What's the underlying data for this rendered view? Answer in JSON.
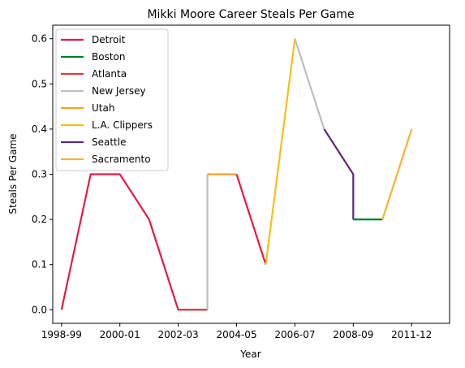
{
  "chart_data": {
    "type": "line",
    "title": "Mikki Moore Career Steals Per Game",
    "xlabel": "Year",
    "ylabel": "Steals Per Game",
    "ylim": [
      -0.03,
      0.63
    ],
    "xlim": [
      -0.3,
      13.3
    ],
    "yticks": [
      0.0,
      0.1,
      0.2,
      0.3,
      0.4,
      0.5,
      0.6
    ],
    "ytick_labels": [
      "0.0",
      "0.1",
      "0.2",
      "0.3",
      "0.4",
      "0.5",
      "0.6"
    ],
    "xticks": [
      0,
      2,
      4,
      6,
      8,
      10,
      12
    ],
    "xtick_labels": [
      "1998-99",
      "2000-01",
      "2002-03",
      "2004-05",
      "2006-07",
      "2008-09",
      "2011-12"
    ],
    "legend_position": "top-left",
    "grid": false,
    "series": [
      {
        "name": "Detroit",
        "color": "#E31B47",
        "points": [
          [
            0,
            0.0
          ],
          [
            1,
            0.3
          ],
          [
            2,
            0.3
          ],
          [
            3,
            0.2
          ],
          [
            4,
            0.0
          ],
          [
            5,
            0.0
          ]
        ]
      },
      {
        "name": "Boston",
        "color": "#007A33",
        "points": [
          [
            10,
            0.2
          ],
          [
            11,
            0.2
          ]
        ]
      },
      {
        "name": "Atlanta",
        "color": "#E03A3E",
        "points": []
      },
      {
        "name": "New Jersey",
        "color": "#BEBEBE",
        "points": [
          [
            5,
            0.0
          ],
          [
            5,
            0.3
          ]
        ]
      },
      {
        "name": "Utah",
        "color": "#F9A01B",
        "points": [
          [
            5,
            0.3
          ],
          [
            6,
            0.3
          ]
        ]
      },
      {
        "name": "L.A. Clippers",
        "color": "#F5C016",
        "points": []
      },
      {
        "name": "Seattle",
        "color": "#5B2A7A",
        "points": [
          [
            9,
            0.4
          ],
          [
            10,
            0.3
          ],
          [
            10,
            0.2
          ]
        ]
      },
      {
        "name": "Sacramento",
        "color": "#F6B431",
        "points": [
          [
            11,
            0.2
          ],
          [
            12,
            0.4
          ]
        ]
      }
    ],
    "extra_segments": [
      {
        "series": "Detroit",
        "points": [
          [
            6,
            0.3
          ],
          [
            7,
            0.1
          ]
        ]
      },
      {
        "series": "L.A. Clippers",
        "points": [
          [
            7,
            0.1
          ],
          [
            8,
            0.6
          ]
        ]
      },
      {
        "series": "New Jersey",
        "points": [
          [
            8,
            0.6
          ],
          [
            9,
            0.4
          ]
        ]
      }
    ]
  }
}
